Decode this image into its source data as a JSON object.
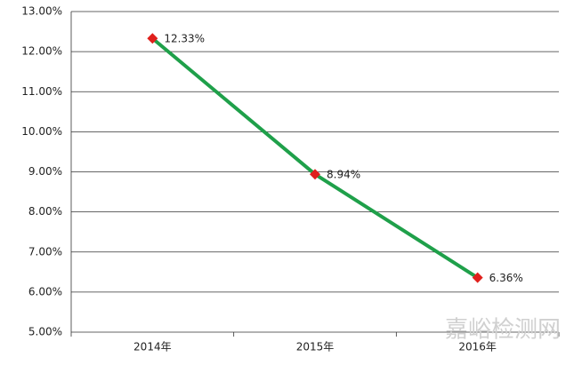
{
  "chart_data": {
    "type": "line",
    "categories": [
      "2014年",
      "2015年",
      "2016年"
    ],
    "series": [
      {
        "color": "#1fa04a",
        "marker_color": "#e0201c",
        "values": [
          12.33,
          8.94,
          6.36
        ],
        "value_labels": [
          "12.33%",
          "8.94%",
          "6.36%"
        ]
      }
    ],
    "ylim": [
      5,
      13
    ],
    "yticks": [
      {
        "value": 5,
        "label": "5.00%"
      },
      {
        "value": 6,
        "label": "6.00%"
      },
      {
        "value": 7,
        "label": "7.00%"
      },
      {
        "value": 8,
        "label": "8.00%"
      },
      {
        "value": 9,
        "label": "9.00%"
      },
      {
        "value": 10,
        "label": "10.00%"
      },
      {
        "value": 11,
        "label": "11.00%"
      },
      {
        "value": 12,
        "label": "12.00%"
      },
      {
        "value": 13,
        "label": "13.00%"
      }
    ],
    "grid": true,
    "watermark": "嘉峪检测网"
  }
}
